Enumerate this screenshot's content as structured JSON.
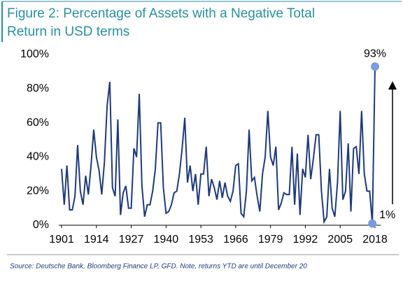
{
  "chart_data": {
    "type": "line",
    "title": "Figure 2: Percentage of Assets with a Negative Total Return in USD terms",
    "title_lines": [
      "Figure 2: Percentage of Assets with a Negative Total",
      "Return in USD terms"
    ],
    "source": "Source: Deutsche Bank, Bloomberg Finance LP, GFD. Note, returns YTD are until December 20",
    "x": [
      1901,
      1902,
      1903,
      1904,
      1905,
      1906,
      1907,
      1908,
      1909,
      1910,
      1911,
      1912,
      1913,
      1914,
      1915,
      1916,
      1917,
      1918,
      1919,
      1920,
      1921,
      1922,
      1923,
      1924,
      1925,
      1926,
      1927,
      1928,
      1929,
      1930,
      1931,
      1932,
      1933,
      1934,
      1935,
      1936,
      1937,
      1938,
      1939,
      1940,
      1941,
      1942,
      1943,
      1944,
      1945,
      1946,
      1947,
      1948,
      1949,
      1950,
      1951,
      1952,
      1953,
      1954,
      1955,
      1956,
      1957,
      1958,
      1959,
      1960,
      1961,
      1962,
      1963,
      1964,
      1965,
      1966,
      1967,
      1968,
      1969,
      1970,
      1971,
      1972,
      1973,
      1974,
      1975,
      1976,
      1977,
      1978,
      1979,
      1980,
      1981,
      1982,
      1983,
      1984,
      1985,
      1986,
      1987,
      1988,
      1989,
      1990,
      1991,
      1992,
      1993,
      1994,
      1995,
      1996,
      1997,
      1998,
      1999,
      2000,
      2001,
      2002,
      2003,
      2004,
      2005,
      2006,
      2007,
      2008,
      2009,
      2010,
      2011,
      2012,
      2013,
      2014,
      2015,
      2016,
      2017,
      2018
    ],
    "series": [
      {
        "name": "Percentage of assets with negative total return",
        "color": "#1f3a7a",
        "values": [
          33,
          12,
          35,
          9,
          9,
          17,
          47,
          20,
          12,
          29,
          18,
          35,
          56,
          40,
          32,
          18,
          37,
          70,
          84,
          22,
          17,
          62,
          6,
          19,
          23,
          10,
          10,
          45,
          40,
          77,
          23,
          5,
          12,
          12,
          20,
          33,
          60,
          60,
          22,
          7,
          8,
          12,
          19,
          20,
          30,
          45,
          63,
          25,
          35,
          20,
          30,
          12,
          30,
          30,
          46,
          17,
          27,
          22,
          15,
          26,
          16,
          25,
          17,
          14,
          20,
          35,
          36,
          7,
          5,
          20,
          56,
          26,
          28,
          17,
          8,
          30,
          40,
          67,
          40,
          35,
          46,
          9,
          13,
          19,
          18,
          18,
          46,
          12,
          42,
          6,
          33,
          28,
          53,
          27,
          39,
          53,
          53,
          20,
          2,
          5,
          33,
          10,
          5,
          25,
          67,
          15,
          20,
          48,
          8,
          45,
          46,
          30,
          67,
          30,
          20,
          20,
          1,
          93
        ]
      }
    ],
    "annotations": [
      {
        "text": "93%",
        "index": 117
      },
      {
        "text": "1%",
        "index": 116
      }
    ],
    "marker_color": "#7b9be0",
    "xlim": [
      1901,
      2018
    ],
    "xticks": [
      1901,
      1914,
      1927,
      1940,
      1953,
      1966,
      1979,
      1992,
      2005,
      2018
    ],
    "ylim": [
      0,
      100
    ],
    "yticks": [
      {
        "value": 0,
        "label": "0%"
      },
      {
        "value": 20,
        "label": "20%"
      },
      {
        "value": 40,
        "label": "40%"
      },
      {
        "value": 60,
        "label": "60%"
      },
      {
        "value": 80,
        "label": "80%"
      },
      {
        "value": 100,
        "label": "100%"
      }
    ]
  }
}
